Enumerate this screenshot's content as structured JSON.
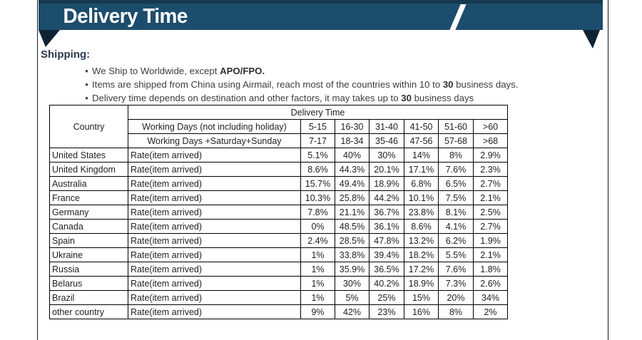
{
  "banner": {
    "title": "Delivery Time",
    "colors": {
      "bar": "#1d4d6c",
      "top_strip": "#16394f",
      "fold": "#0e2435",
      "slash": "#ffffff",
      "title_text": "#ffffff"
    }
  },
  "shipping": {
    "heading": "Shipping:",
    "bullet_char": "•",
    "bullets": [
      {
        "pre": "We Ship to Worldwide, except ",
        "bold": "APO/FPO.",
        "post": ""
      },
      {
        "pre": "Items are shipped from China using Airmail, reach most of the countries within 10 to ",
        "bold": "30",
        "post": " business days."
      },
      {
        "pre": "Delivery time depends on destination and other factors, it may takes up to ",
        "bold": "30",
        "post": " business days"
      }
    ]
  },
  "table": {
    "corner_label": "Country",
    "group_header": "Delivery Time",
    "working_days_rows": [
      {
        "label": "Working Days (not including holiday)",
        "cols": [
          "5-15",
          "16-30",
          "31-40",
          "41-50",
          "51-60",
          ">60"
        ]
      },
      {
        "label": "Working Days +Saturday+Sunday",
        "cols": [
          "7-17",
          "18-34",
          "35-46",
          "47-56",
          "57-68",
          ">68"
        ]
      }
    ],
    "rate_label": "Rate(item arrived)",
    "rows": [
      {
        "country": "United States",
        "values": [
          "5.1%",
          "40%",
          "30%",
          "14%",
          "8%",
          "2.9%"
        ]
      },
      {
        "country": "United Kingdom",
        "values": [
          "8.6%",
          "44.3%",
          "20.1%",
          "17.1%",
          "7.6%",
          "2.3%"
        ]
      },
      {
        "country": "Australia",
        "values": [
          "15.7%",
          "49.4%",
          "18.9%",
          "6.8%",
          "6.5%",
          "2.7%"
        ]
      },
      {
        "country": "France",
        "values": [
          "10.3%",
          "25.8%",
          "44.2%",
          "10.1%",
          "7.5%",
          "2.1%"
        ]
      },
      {
        "country": "Germany",
        "values": [
          "7.8%",
          "21.1%",
          "36.7%",
          "23.8%",
          "8.1%",
          "2.5%"
        ]
      },
      {
        "country": "Canada",
        "values": [
          "0%",
          "48.5%",
          "36.1%",
          "8.6%",
          "4.1%",
          "2.7%"
        ]
      },
      {
        "country": "Spain",
        "values": [
          "2.4%",
          "28.5%",
          "47.8%",
          "13.2%",
          "6.2%",
          "1.9%"
        ]
      },
      {
        "country": "Ukraine",
        "values": [
          "1%",
          "33.8%",
          "39.4%",
          "18.2%",
          "5.5%",
          "2.1%"
        ]
      },
      {
        "country": "Russia",
        "values": [
          "1%",
          "35.9%",
          "36.5%",
          "17.2%",
          "7.6%",
          "1.8%"
        ]
      },
      {
        "country": "Belarus",
        "values": [
          "1%",
          "30%",
          "40.2%",
          "18.9%",
          "7.3%",
          "2.6%"
        ]
      },
      {
        "country": "Brazil",
        "values": [
          "1%",
          "5%",
          "25%",
          "15%",
          "20%",
          "34%"
        ]
      },
      {
        "country": "other country",
        "values": [
          "9%",
          "42%",
          "23%",
          "16%",
          "8%",
          "2%"
        ]
      }
    ]
  }
}
